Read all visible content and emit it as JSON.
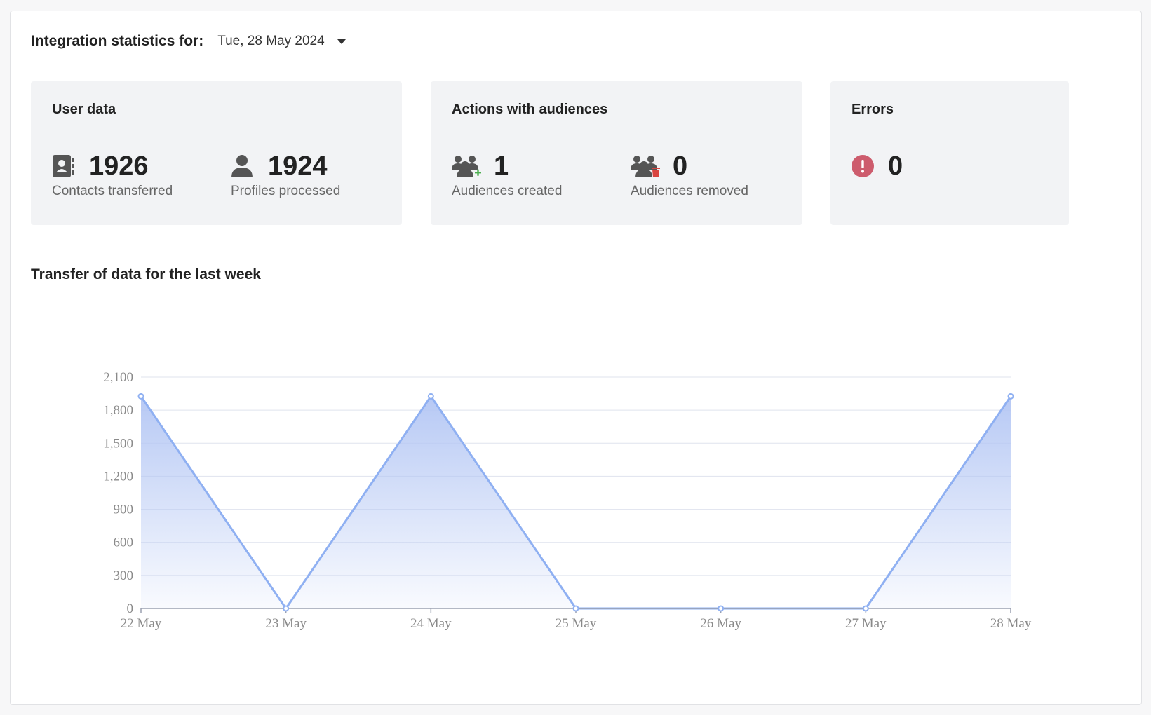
{
  "header": {
    "label": "Integration statistics for:",
    "date": "Tue, 28 May 2024"
  },
  "cards": {
    "user_data": {
      "title": "User data",
      "contacts": {
        "value": "1926",
        "label": "Contacts transferred",
        "icon": "contact-book-icon"
      },
      "profiles": {
        "value": "1924",
        "label": "Profiles processed",
        "icon": "person-icon"
      }
    },
    "audiences": {
      "title": "Actions with audiences",
      "created": {
        "value": "1",
        "label": "Audiences created",
        "icon": "audience-add-icon"
      },
      "removed": {
        "value": "0",
        "label": "Audiences removed",
        "icon": "audience-delete-icon"
      }
    },
    "errors": {
      "title": "Errors",
      "count": {
        "value": "0",
        "icon": "error-icon"
      }
    }
  },
  "chart_title": "Transfer of data for the last week",
  "colors": {
    "line": "#8fb0f2",
    "fill": "#b3c6f4",
    "error": "#cd5c6d",
    "add": "#4caf50",
    "delete": "#d9443f"
  },
  "chart_data": {
    "type": "area",
    "categories": [
      "22 May",
      "23 May",
      "24 May",
      "25 May",
      "26 May",
      "27 May",
      "28 May"
    ],
    "values": [
      1926,
      0,
      1926,
      0,
      0,
      0,
      1926
    ],
    "yticks": [
      "0",
      "300",
      "600",
      "900",
      "1,200",
      "1,500",
      "1,800",
      "2,100"
    ],
    "ylim": [
      0,
      2100
    ],
    "grid": true,
    "legend": "none"
  }
}
